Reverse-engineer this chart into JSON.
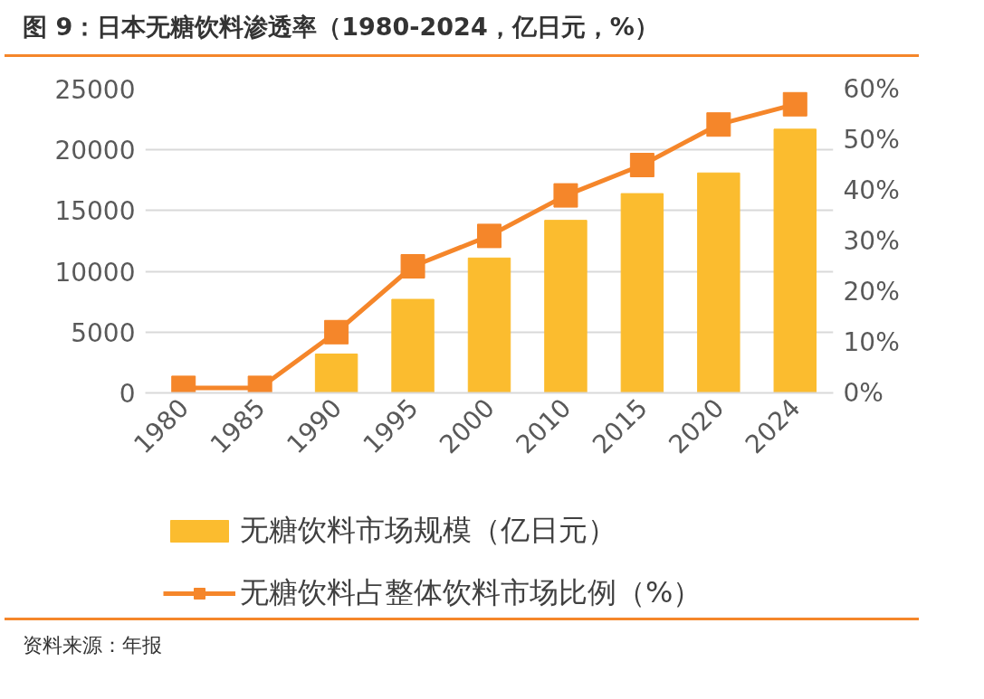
{
  "chart_data": {
    "type": "bar",
    "title": "图 9：日本无糖饮料渗透率（1980-2024，亿日元，%）",
    "categories": [
      "1980",
      "1985",
      "1990",
      "1995",
      "2000",
      "2010",
      "2015",
      "2020",
      "2024"
    ],
    "series": [
      {
        "name": "无糖饮料市场规模（亿日元）",
        "color": "#fbbc2f",
        "values": [
          0,
          0,
          3200,
          7700,
          11100,
          14200,
          16400,
          18100,
          21700
        ]
      },
      {
        "name": "无糖饮料占整体饮料市场比例（%）",
        "type": "line",
        "axis": "y2",
        "color": "#f5862a",
        "values": [
          1,
          1,
          12,
          25,
          31,
          39,
          45,
          53,
          57
        ]
      }
    ],
    "ylim": [
      0,
      25000
    ],
    "yticks": [
      0,
      5000,
      10000,
      15000,
      20000,
      25000
    ],
    "y2lim": [
      0,
      60
    ],
    "y2ticks": [
      {
        "value": 0,
        "label": "0%"
      },
      {
        "value": 10,
        "label": "10%"
      },
      {
        "value": 20,
        "label": "20%"
      },
      {
        "value": 30,
        "label": "30%"
      },
      {
        "value": 40,
        "label": "40%"
      },
      {
        "value": 50,
        "label": "50%"
      },
      {
        "value": 60,
        "label": "60%"
      }
    ],
    "grid": "y",
    "legend": "bottom",
    "marker": "square",
    "annotations": [
      "资料来源：年报"
    ]
  }
}
